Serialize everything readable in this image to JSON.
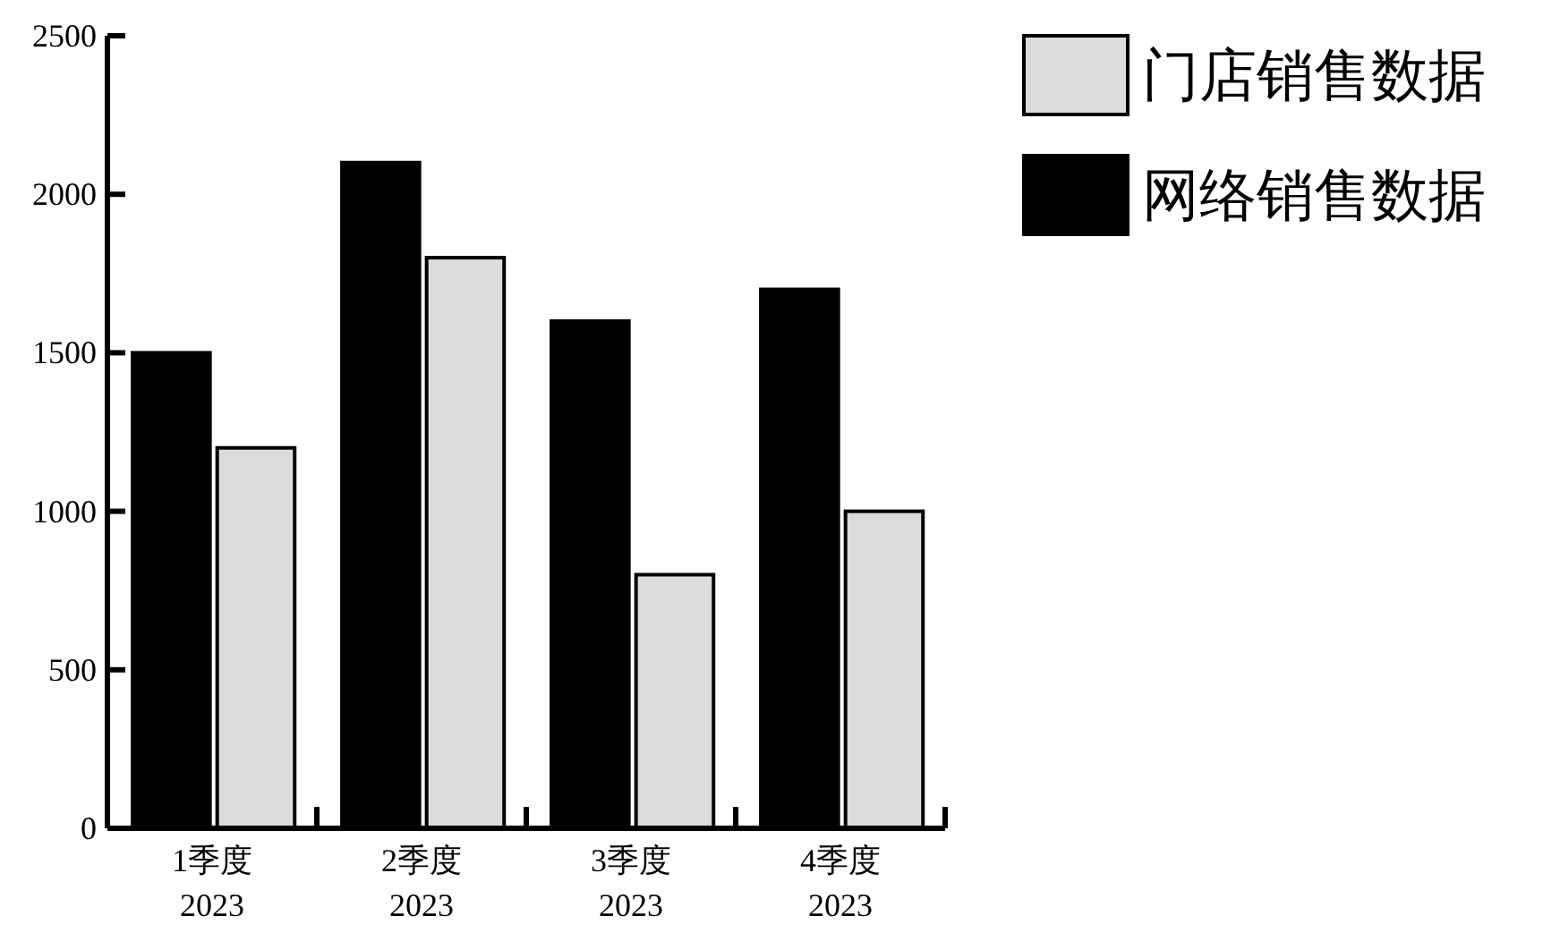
{
  "chart_data": {
    "type": "bar",
    "categories": [
      "1季度\n2023",
      "2季度\n2023",
      "3季度\n2023",
      "4季度\n2023"
    ],
    "series": [
      {
        "name": "网络销售数据",
        "color": "#000000",
        "values": [
          1500,
          2100,
          1600,
          1700
        ]
      },
      {
        "name": "门店销售数据",
        "color": "#dcdcdc",
        "values": [
          1200,
          1800,
          800,
          1000
        ]
      }
    ],
    "ylim": [
      0,
      2500
    ],
    "yticks": [
      0,
      500,
      1000,
      1500,
      2000,
      2500
    ],
    "grid": false,
    "legend": "top right"
  }
}
